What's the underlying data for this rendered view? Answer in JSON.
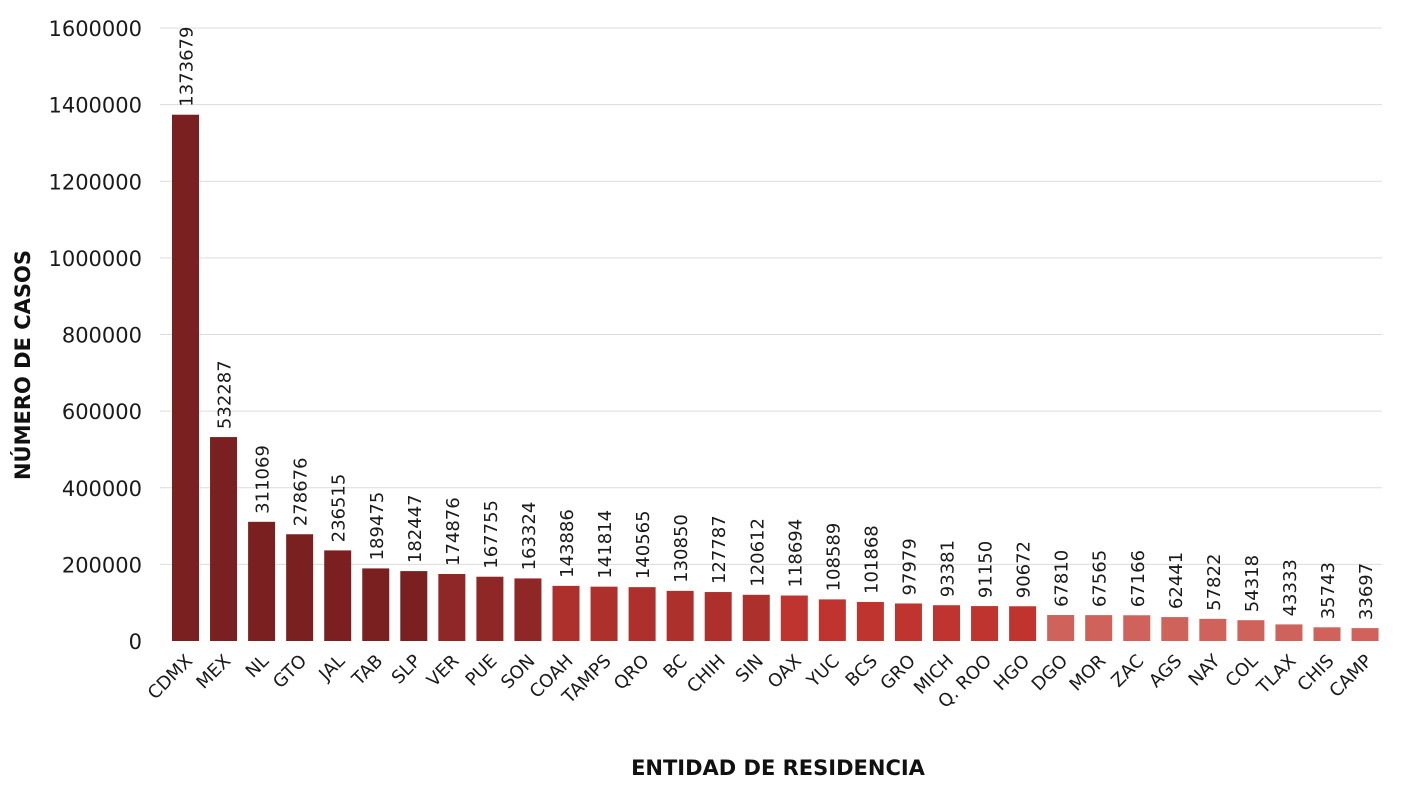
{
  "chart_data": {
    "type": "bar",
    "title": "",
    "xlabel": "ENTIDAD DE RESIDENCIA",
    "ylabel": "NÚMERO DE CASOS",
    "ylim": [
      0,
      1600000
    ],
    "yticks": [
      "0",
      "200000",
      "400000",
      "600000",
      "800000",
      "1000000",
      "1200000",
      "1400000",
      "1600000"
    ],
    "grid": true,
    "categories": [
      "CDMX",
      "MEX",
      "NL",
      "GTO",
      "JAL",
      "TAB",
      "SLP",
      "VER",
      "PUE",
      "SON",
      "COAH",
      "TAMPS",
      "QRO",
      "BC",
      "CHIH",
      "SIN",
      "OAX",
      "YUC",
      "BCS",
      "GRO",
      "MICH",
      "Q. ROO",
      "HGO",
      "DGO",
      "MOR",
      "ZAC",
      "AGS",
      "NAY",
      "COL",
      "TLAX",
      "CHIS",
      "CAMP"
    ],
    "values": [
      1373679,
      532287,
      311069,
      278676,
      236515,
      189475,
      182447,
      174876,
      167755,
      163324,
      143886,
      141814,
      140565,
      130850,
      127787,
      120612,
      118694,
      108589,
      101868,
      97979,
      93381,
      91150,
      90672,
      67810,
      67565,
      67166,
      62441,
      57822,
      54318,
      43333,
      35743,
      33697
    ],
    "data_labels": [
      "1373679",
      "532287",
      "311069",
      "278676",
      "236515",
      "189475",
      "182447",
      "174876",
      "167755",
      "163324",
      "143886",
      "141814",
      "140565",
      "130850",
      "127787",
      "120612",
      "118694",
      "108589",
      "101868",
      "97979",
      "93381",
      "91150",
      "90672",
      "67810",
      "67565",
      "67166",
      "62441",
      "57822",
      "54318",
      "43333",
      "35743",
      "33697"
    ],
    "colors": [
      "#7b2020",
      "#7b2020",
      "#7b2020",
      "#7b2020",
      "#7b2020",
      "#7b2020",
      "#7b2020",
      "#8f2727",
      "#8f2727",
      "#8f2727",
      "#ad302c",
      "#ad302c",
      "#ad302c",
      "#ad302c",
      "#ad302c",
      "#ad302c",
      "#c0342f",
      "#c0342f",
      "#c0342f",
      "#c0342f",
      "#c0342f",
      "#c0342f",
      "#c0342f",
      "#d0625c",
      "#d0625c",
      "#d0625c",
      "#d0625c",
      "#d0625c",
      "#d0625c",
      "#d0625c",
      "#d0625c",
      "#d0625c"
    ]
  }
}
